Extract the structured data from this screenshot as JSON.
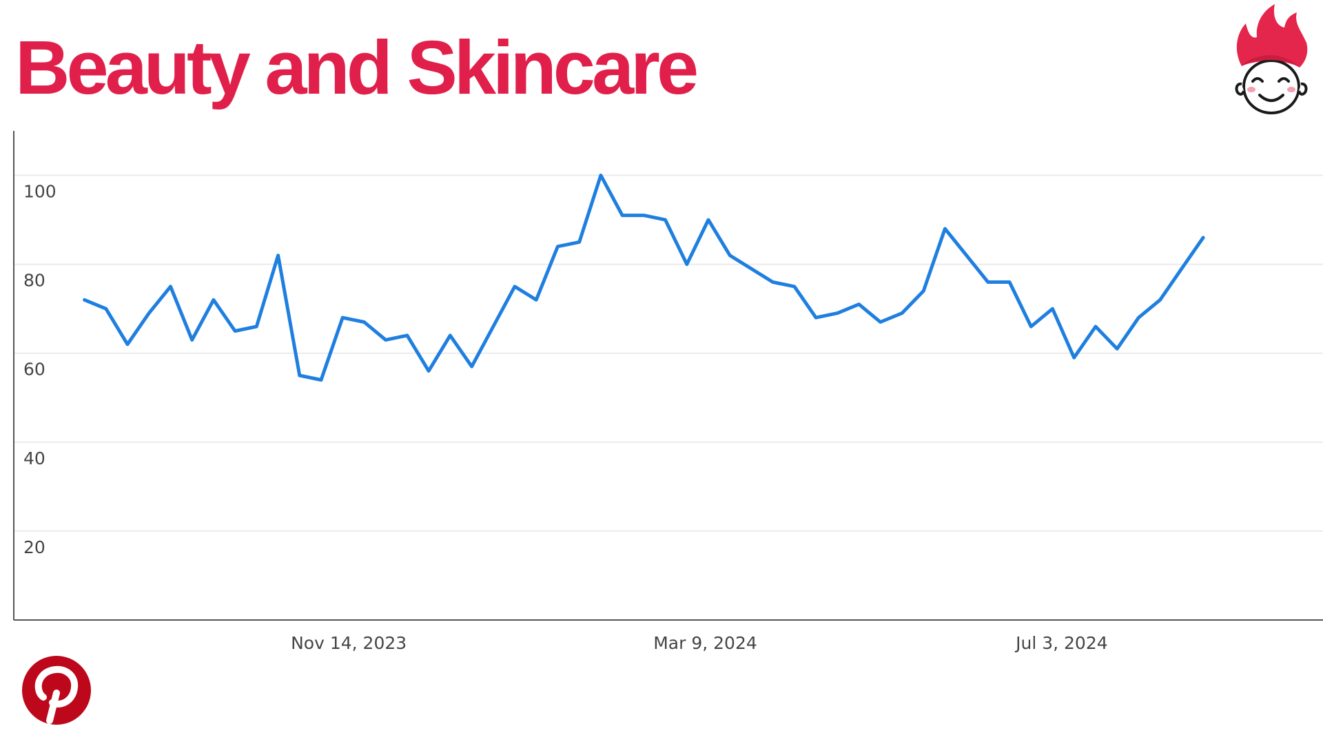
{
  "header": {
    "title": "Beauty and Skincare"
  },
  "colors": {
    "title": "#e0204a",
    "line": "#1f7fe0",
    "axis": "#555555",
    "grid": "#ebebeb",
    "brand_flame": "#e5264c",
    "pinterest": "#bd081c"
  },
  "logos": {
    "brand": "flame-hair-cartoon-face-logo",
    "pinterest": "pinterest-logo"
  },
  "chart_data": {
    "type": "line",
    "title": "",
    "xlabel": "",
    "ylabel": "",
    "ylim": [
      0,
      110
    ],
    "xlim": [
      "2023-07-28",
      "2024-09-26"
    ],
    "grid": true,
    "y_ticks": [
      20,
      40,
      60,
      80,
      100
    ],
    "x_ticks": [
      {
        "label": "Nov 14, 2023",
        "date": "2023-11-14"
      },
      {
        "label": "Mar 9, 2024",
        "date": "2024-03-09"
      },
      {
        "label": "Jul 3, 2024",
        "date": "2024-07-03"
      }
    ],
    "series": [
      {
        "x": [
          "2023-08-20",
          "2023-08-27",
          "2023-09-03",
          "2023-09-10",
          "2023-09-17",
          "2023-09-24",
          "2023-10-01",
          "2023-10-08",
          "2023-10-15",
          "2023-10-22",
          "2023-10-29",
          "2023-11-05",
          "2023-11-12",
          "2023-11-19",
          "2023-11-26",
          "2023-12-03",
          "2023-12-10",
          "2023-12-17",
          "2023-12-24",
          "2023-12-31",
          "2024-01-07",
          "2024-01-14",
          "2024-01-21",
          "2024-01-28",
          "2024-02-04",
          "2024-02-11",
          "2024-02-18",
          "2024-02-25",
          "2024-03-03",
          "2024-03-10",
          "2024-03-17",
          "2024-03-24",
          "2024-03-31",
          "2024-04-07",
          "2024-04-14",
          "2024-04-21",
          "2024-04-28",
          "2024-05-05",
          "2024-05-12",
          "2024-05-19",
          "2024-05-26",
          "2024-06-02",
          "2024-06-09",
          "2024-06-16",
          "2024-06-23",
          "2024-06-30",
          "2024-07-07",
          "2024-07-14",
          "2024-07-21",
          "2024-07-28",
          "2024-08-04",
          "2024-08-11",
          "2024-08-18"
        ],
        "values": [
          72,
          70,
          62,
          69,
          75,
          63,
          72,
          65,
          66,
          82,
          55,
          54,
          68,
          67,
          63,
          64,
          56,
          64,
          57,
          66,
          75,
          72,
          84,
          85,
          100,
          91,
          91,
          90,
          80,
          90,
          82,
          79,
          76,
          75,
          68,
          69,
          71,
          67,
          69,
          74,
          88,
          82,
          76,
          76,
          66,
          70,
          59,
          66,
          61,
          68,
          72,
          79,
          86
        ]
      }
    ]
  }
}
